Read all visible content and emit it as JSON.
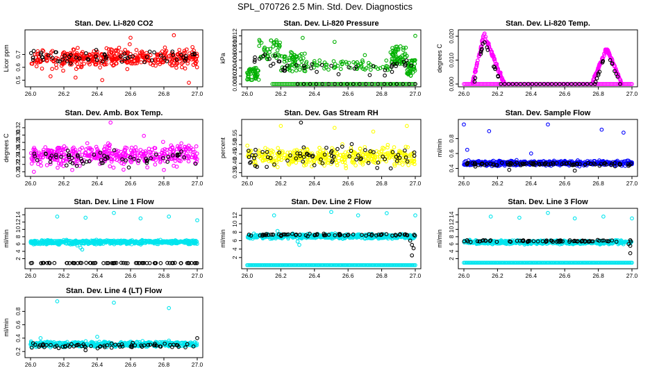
{
  "page": {
    "title": "SPL_070726  2.5 Min. Std. Dev. Diagnostics"
  },
  "chart_data": [
    {
      "id": "co2",
      "type": "scatter",
      "title": "Stan. Dev. Li-820 CO2",
      "ylabel": "Licor ppm",
      "xlim": [
        26.0,
        27.0
      ],
      "xticks": [
        "26.0",
        "26.2",
        "26.4",
        "26.6",
        "26.8",
        "27.0"
      ],
      "ylim": [
        0.47,
        0.87
      ],
      "yticks": [
        0.5,
        0.6,
        0.7
      ],
      "ytick_labels": [
        "0.5",
        "0.6",
        "0.7"
      ],
      "grid": false,
      "series": [
        {
          "color": "#ff0000",
          "pattern": {
            "kind": "noise",
            "center": 0.67,
            "spread": 0.07,
            "n": 400,
            "seed": 11,
            "spikes": [
              [
                26.95,
                0.48
              ],
              [
                26.12,
                0.53
              ],
              [
                26.43,
                0.5
              ],
              [
                26.86,
                0.85
              ],
              [
                26.6,
                0.83
              ],
              [
                26.27,
                0.52
              ]
            ]
          }
        },
        {
          "color": "#000000",
          "pattern": {
            "kind": "noise",
            "center": 0.68,
            "spread": 0.05,
            "n": 60,
            "seed": 12
          }
        }
      ]
    },
    {
      "id": "pressure",
      "type": "scatter",
      "title": "Stan. Dev. Li-820 Pressure",
      "ylabel": "kPa",
      "xlim": [
        26.0,
        27.0
      ],
      "xticks": [
        "26.0",
        "26.2",
        "26.4",
        "26.6",
        "26.8",
        "27.0"
      ],
      "ylim": [
        0.0,
        0.0128
      ],
      "yticks": [
        0.0,
        0.002,
        0.004,
        0.006,
        0.008,
        0.01,
        0.012
      ],
      "ytick_labels": [
        "0.000",
        "0.002",
        "0.004",
        "0.006",
        "0.008",
        "0.010",
        "0.012"
      ],
      "grid": false,
      "series": [
        {
          "color": "#00b000",
          "pattern": {
            "kind": "segments",
            "seed": 21,
            "n": 300,
            "segments": [
              [
                26.0,
                26.07,
                0.001,
                0.004
              ],
              [
                26.07,
                26.2,
                0.006,
                0.011
              ],
              [
                26.2,
                26.35,
                0.003,
                0.008
              ],
              [
                26.35,
                26.85,
                0.0035,
                0.006
              ],
              [
                26.85,
                26.95,
                0.005,
                0.0095
              ],
              [
                26.95,
                27.0,
                0.002,
                0.006
              ]
            ],
            "extras": [
              [
                26.33,
                0.0115
              ],
              [
                27.0,
                0.012
              ],
              [
                26.52,
                0.0105
              ],
              [
                26.93,
                0.009
              ],
              [
                26.7,
                0.0072
              ]
            ]
          }
        },
        {
          "color": "#00b000",
          "pattern": {
            "kind": "baseline",
            "from": 26.15,
            "to": 27.0,
            "y": 0.0,
            "n": 90,
            "seed": 22
          }
        },
        {
          "color": "#000000",
          "pattern": {
            "kind": "segments",
            "seed": 23,
            "n": 45,
            "segments": [
              [
                26.0,
                26.2,
                0.004,
                0.008
              ],
              [
                26.2,
                26.5,
                0.0025,
                0.005
              ],
              [
                26.5,
                26.85,
                0.002,
                0.005
              ],
              [
                26.85,
                27.0,
                0.003,
                0.006
              ]
            ]
          }
        },
        {
          "color": "#000000",
          "pattern": {
            "kind": "baseline",
            "from": 26.3,
            "to": 27.0,
            "y": 0.0,
            "n": 20,
            "seed": 24
          }
        }
      ]
    },
    {
      "id": "temp",
      "type": "scatter",
      "title": "Stan. Dev. Li-820 Temp.",
      "ylabel": "degrees C",
      "xlim": [
        26.0,
        27.0
      ],
      "xticks": [
        "26.0",
        "26.2",
        "26.4",
        "26.6",
        "26.8",
        "27.0"
      ],
      "ylim": [
        0.0,
        0.0215
      ],
      "yticks": [
        0.0,
        0.01,
        0.02
      ],
      "ytick_labels": [
        "0.000",
        "0.010",
        "0.020"
      ],
      "grid": false,
      "series": [
        {
          "color": "#ff00ff",
          "pattern": {
            "kind": "peaks",
            "seed": 31,
            "n": 220,
            "peaks": [
              [
                26.05,
                26.12,
                26.24,
                0.021
              ],
              [
                26.76,
                26.85,
                26.94,
                0.015
              ]
            ]
          }
        },
        {
          "color": "#ff00ff",
          "pattern": {
            "kind": "baseline",
            "from": 26.0,
            "to": 27.0,
            "y": 0.0,
            "n": 120,
            "seed": 32
          }
        },
        {
          "color": "#000000",
          "pattern": {
            "kind": "peaks",
            "seed": 33,
            "n": 30,
            "peaks": [
              [
                26.06,
                26.12,
                26.22,
                0.019
              ],
              [
                26.78,
                26.85,
                26.93,
                0.014
              ]
            ]
          }
        },
        {
          "color": "#000000",
          "pattern": {
            "kind": "baseline",
            "from": 26.22,
            "to": 26.78,
            "y": 0.0,
            "n": 25,
            "seed": 34
          }
        }
      ]
    },
    {
      "id": "boxtemp",
      "type": "scatter",
      "title": "Stan. Dev. Amb. Box Temp.",
      "ylabel": "degrees C",
      "xlim": [
        26.0,
        27.0
      ],
      "xticks": [
        "26.0",
        "26.2",
        "26.4",
        "26.6",
        "26.8",
        "27.0"
      ],
      "ylim": [
        0.195,
        0.335
      ],
      "yticks": [
        0.2,
        0.22,
        0.24,
        0.26,
        0.28,
        0.3,
        0.32
      ],
      "ytick_labels": [
        "0.20",
        "0.22",
        "0.24",
        "0.26",
        "0.28",
        "0.30",
        "0.32"
      ],
      "grid": false,
      "series": [
        {
          "color": "#ff00ff",
          "pattern": {
            "kind": "noise",
            "center": 0.245,
            "spread": 0.025,
            "n": 420,
            "seed": 41,
            "spikes": [
              [
                26.48,
                0.334
              ],
              [
                26.02,
                0.2
              ],
              [
                26.25,
                0.205
              ],
              [
                26.8,
                0.205
              ],
              [
                26.68,
                0.298
              ]
            ]
          }
        },
        {
          "color": "#000000",
          "pattern": {
            "kind": "noise",
            "center": 0.235,
            "spread": 0.018,
            "n": 60,
            "seed": 42
          }
        }
      ]
    },
    {
      "id": "rh",
      "type": "scatter",
      "title": "Stan. Dev. Gas Stream RH",
      "ylabel": "percent",
      "xlim": [
        26.0,
        27.0
      ],
      "xticks": [
        "26.0",
        "26.2",
        "26.4",
        "26.6",
        "26.8",
        "27.0"
      ],
      "ylim": [
        0.345,
        0.62
      ],
      "yticks": [
        0.35,
        0.4,
        0.45,
        0.5,
        0.55
      ],
      "ytick_labels": [
        "0.35",
        "0.40",
        "0.45",
        "0.50",
        "0.55"
      ],
      "grid": false,
      "series": [
        {
          "color": "#ffff00",
          "pattern": {
            "kind": "noise",
            "center": 0.435,
            "spread": 0.045,
            "n": 400,
            "seed": 51,
            "spikes": [
              [
                26.2,
                0.6
              ],
              [
                26.52,
                0.59
              ],
              [
                26.95,
                0.6
              ],
              [
                26.75,
                0.57
              ]
            ]
          }
        },
        {
          "color": "#000000",
          "pattern": {
            "kind": "noise",
            "center": 0.44,
            "spread": 0.05,
            "n": 70,
            "seed": 52,
            "spikes": [
              [
                26.32,
                0.618
              ]
            ]
          }
        }
      ]
    },
    {
      "id": "sampleflow",
      "type": "scatter",
      "title": "Stan. Dev. Sample Flow",
      "ylabel": "ml/min",
      "xlim": [
        26.0,
        27.0
      ],
      "xticks": [
        "26.0",
        "26.2",
        "26.4",
        "26.6",
        "26.8",
        "27.0"
      ],
      "ylim": [
        0.33,
        1.02
      ],
      "yticks": [
        0.4,
        0.6,
        0.8
      ],
      "ytick_labels": [
        "0.4",
        "0.6",
        "0.8"
      ],
      "grid": false,
      "series": [
        {
          "color": "#0000ff",
          "pattern": {
            "kind": "noise",
            "center": 0.47,
            "spread": 0.03,
            "n": 500,
            "seed": 61,
            "spikes": [
              [
                26.0,
                0.99
              ],
              [
                26.15,
                0.9
              ],
              [
                26.5,
                0.99
              ],
              [
                26.82,
                0.92
              ],
              [
                26.95,
                0.88
              ],
              [
                26.02,
                0.65
              ],
              [
                26.4,
                0.6
              ]
            ]
          }
        },
        {
          "color": "#000000",
          "pattern": {
            "kind": "noise",
            "center": 0.46,
            "spread": 0.022,
            "n": 90,
            "seed": 62,
            "spikes": [
              [
                26.27,
                0.38
              ],
              [
                26.66,
                0.37
              ]
            ]
          }
        }
      ]
    },
    {
      "id": "line1",
      "type": "scatter",
      "title": "Stan. Dev. Line 1 Flow",
      "ylabel": "ml/min",
      "xlim": [
        26.0,
        27.0
      ],
      "xticks": [
        "26.0",
        "26.2",
        "26.4",
        "26.6",
        "26.8",
        "27.0"
      ],
      "ylim": [
        0.0,
        15.0
      ],
      "yticks": [
        2,
        4,
        6,
        8,
        10,
        12,
        14
      ],
      "ytick_labels": [
        "2",
        "4",
        "6",
        "8",
        "10",
        "12",
        "14"
      ],
      "grid": false,
      "series": [
        {
          "color": "#00e5ee",
          "pattern": {
            "kind": "noise",
            "center": 6.5,
            "spread": 0.5,
            "n": 550,
            "seed": 71,
            "spikes": [
              [
                26.16,
                13.5
              ],
              [
                26.33,
                13.2
              ],
              [
                26.5,
                14.5
              ],
              [
                26.66,
                13.0
              ],
              [
                26.83,
                13.5
              ],
              [
                27.0,
                12.5
              ],
              [
                26.31,
                4.5
              ],
              [
                26.3,
                5.0
              ],
              [
                26.28,
                5.6
              ]
            ]
          }
        },
        {
          "color": "#000000",
          "pattern": {
            "kind": "noise",
            "center": 0.8,
            "spread": 0.06,
            "n": 70,
            "seed": 72
          }
        }
      ]
    },
    {
      "id": "line2",
      "type": "scatter",
      "title": "Stan. Dev. Line 2 Flow",
      "ylabel": "ml/min",
      "xlim": [
        26.0,
        27.0
      ],
      "xticks": [
        "26.0",
        "26.2",
        "26.4",
        "26.6",
        "26.8",
        "27.0"
      ],
      "ylim": [
        0.0,
        13.0
      ],
      "yticks": [
        2,
        4,
        6,
        8,
        10,
        12
      ],
      "ytick_labels": [
        "2",
        "4",
        "6",
        "8",
        "10",
        "12"
      ],
      "grid": false,
      "series": [
        {
          "color": "#00e5ee",
          "pattern": {
            "kind": "noise",
            "center": 7.0,
            "spread": 0.5,
            "n": 550,
            "seed": 81,
            "spikes": [
              [
                26.16,
                12.0
              ],
              [
                26.5,
                12.8
              ],
              [
                26.66,
                12.0
              ],
              [
                26.83,
                12.5
              ],
              [
                27.0,
                12.0
              ],
              [
                26.31,
                5.0
              ],
              [
                26.3,
                5.8
              ],
              [
                26.18,
                8.3
              ]
            ]
          }
        },
        {
          "color": "#00e5ee",
          "pattern": {
            "kind": "baseline",
            "from": 26.0,
            "to": 27.0,
            "y": 0.2,
            "n": 150,
            "seed": 82
          }
        },
        {
          "color": "#000000",
          "pattern": {
            "kind": "noise",
            "center": 7.4,
            "spread": 0.25,
            "n": 70,
            "seed": 83,
            "spikes": [
              [
                26.98,
                5.0
              ],
              [
                26.99,
                4.2
              ],
              [
                26.98,
                2.5
              ],
              [
                26.97,
                6.0
              ]
            ]
          }
        }
      ]
    },
    {
      "id": "line3",
      "type": "scatter",
      "title": "Stan. Dev. Line 3 Flow",
      "ylabel": "ml/min",
      "xlim": [
        26.0,
        27.0
      ],
      "xticks": [
        "26.0",
        "26.2",
        "26.4",
        "26.6",
        "26.8",
        "27.0"
      ],
      "ylim": [
        0.0,
        15.0
      ],
      "yticks": [
        2,
        4,
        6,
        8,
        10,
        12,
        14
      ],
      "ytick_labels": [
        "2",
        "4",
        "6",
        "8",
        "10",
        "12",
        "14"
      ],
      "grid": false,
      "series": [
        {
          "color": "#00e5ee",
          "pattern": {
            "kind": "noise",
            "center": 6.5,
            "spread": 0.45,
            "n": 550,
            "seed": 91,
            "spikes": [
              [
                26.16,
                13.5
              ],
              [
                26.33,
                13.2
              ],
              [
                26.5,
                14.5
              ],
              [
                26.66,
                13.0
              ],
              [
                26.83,
                13.5
              ],
              [
                27.0,
                13.0
              ]
            ]
          }
        },
        {
          "color": "#00e5ee",
          "pattern": {
            "kind": "baseline",
            "from": 26.0,
            "to": 27.0,
            "y": 0.9,
            "n": 150,
            "seed": 92
          }
        },
        {
          "color": "#000000",
          "pattern": {
            "kind": "noise",
            "center": 6.8,
            "spread": 0.25,
            "n": 70,
            "seed": 93,
            "spikes": [
              [
                26.99,
                5.5
              ],
              [
                26.99,
                3.5
              ],
              [
                26.98,
                6.0
              ]
            ]
          }
        }
      ]
    },
    {
      "id": "line4",
      "type": "scatter",
      "title": "Stan. Dev. Line 4 (LT) Flow",
      "ylabel": "ml/min",
      "xlim": [
        26.0,
        27.0
      ],
      "xticks": [
        "26.0",
        "26.2",
        "26.4",
        "26.6",
        "26.8",
        "27.0"
      ],
      "ylim": [
        0.15,
        0.97
      ],
      "yticks": [
        0.2,
        0.4,
        0.6,
        0.8
      ],
      "ytick_labels": [
        "0.2",
        "0.4",
        "0.6",
        "0.8"
      ],
      "grid": false,
      "series": [
        {
          "color": "#00e5ee",
          "pattern": {
            "kind": "noise",
            "center": 0.31,
            "spread": 0.035,
            "n": 500,
            "seed": 101,
            "spikes": [
              [
                26.16,
                0.95
              ],
              [
                26.5,
                0.93
              ],
              [
                26.83,
                0.85
              ],
              [
                26.4,
                0.42
              ],
              [
                26.06,
                0.4
              ]
            ]
          }
        },
        {
          "color": "#000000",
          "pattern": {
            "kind": "noise",
            "center": 0.29,
            "spread": 0.03,
            "n": 70,
            "seed": 102,
            "spikes": [
              [
                27.0,
                0.4
              ],
              [
                26.33,
                0.22
              ]
            ]
          }
        }
      ]
    }
  ]
}
